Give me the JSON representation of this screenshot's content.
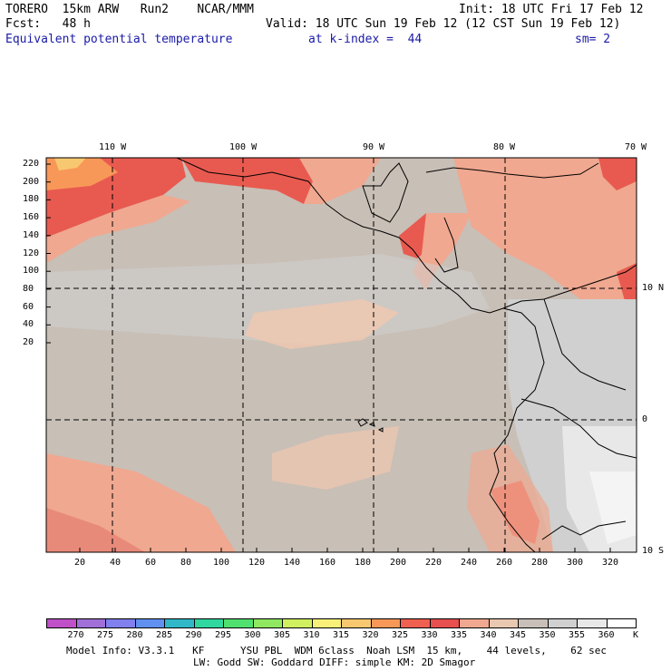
{
  "header": {
    "model": "TORERO  15km ARW   Run2    NCAR/MMM",
    "init": "Init: 18 UTC Fri 17 Feb 12",
    "fcst": "Fcst:   48 h",
    "valid": "Valid: 18 UTC Sun 19 Feb 12 (12 CST Sun 19 Feb 12)",
    "field": "Equivalent potential temperature",
    "kindex": "at k-index =  44",
    "sm": "sm= 2"
  },
  "map": {
    "top_lon_labels": [
      "110 W",
      "100 W",
      "90 W",
      "80 W",
      "70 W"
    ],
    "right_lat_labels": [
      "10 N",
      "0",
      "10 S"
    ],
    "left_ticks": [
      "220",
      "200",
      "180",
      "160",
      "140",
      "120",
      "100",
      "80",
      "60",
      "40",
      "20"
    ],
    "bottom_ticks": [
      "20",
      "40",
      "60",
      "80",
      "100",
      "120",
      "140",
      "160",
      "180",
      "200",
      "220",
      "240",
      "260",
      "280",
      "300",
      "320"
    ]
  },
  "colorbar": {
    "labels": [
      "270",
      "275",
      "280",
      "285",
      "290",
      "295",
      "300",
      "305",
      "310",
      "315",
      "320",
      "325",
      "330",
      "335",
      "340",
      "345",
      "350",
      "355",
      "360"
    ],
    "unit": "K",
    "colors": [
      "#c050c8",
      "#a070d8",
      "#8080ee",
      "#6090f0",
      "#30b8c8",
      "#30d8a0",
      "#50e070",
      "#90e860",
      "#d0f060",
      "#f8f078",
      "#f8c870",
      "#f89858",
      "#f06050",
      "#e85050",
      "#f0a890",
      "#e8c8b0",
      "#c8c0b8",
      "#d0d0d0",
      "#e8e8e8",
      "#ffffff"
    ]
  },
  "footer": {
    "line1": "Model Info: V3.3.1   KF      YSU PBL  WDM 6class  Noah LSM  15 km,    44 levels,    62 sec",
    "line2": "LW: Godd SW: Goddard DIFF: simple KM: 2D Smagor"
  }
}
